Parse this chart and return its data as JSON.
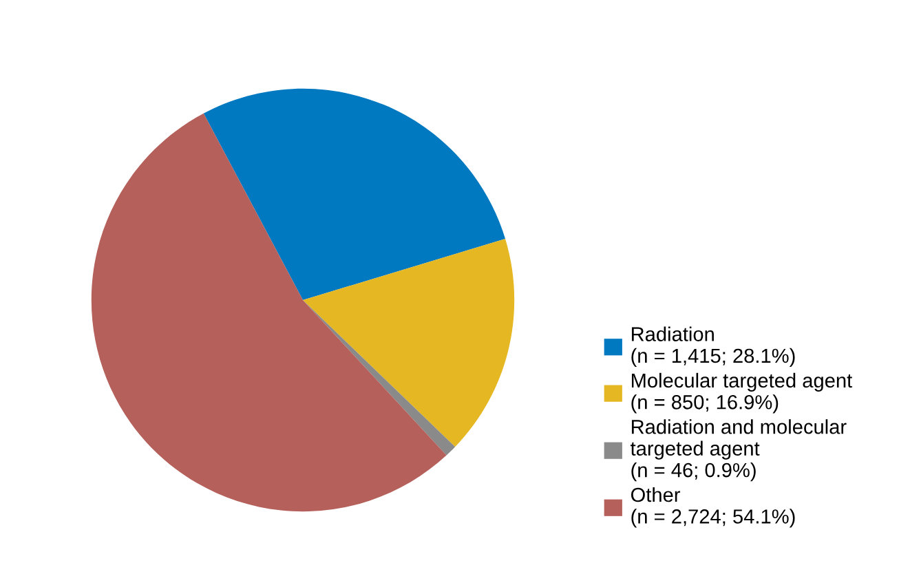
{
  "chart_data": {
    "type": "pie",
    "categories": [
      "Radiation\n(n = 1,415; 28.1%)",
      "Molecular targeted agent\n(n = 850; 16.9%)",
      "Radiation and molecular\ntargeted agent\n(n = 46; 0.9%)",
      "Other\n(n = 2,724; 54.1%)"
    ],
    "values": [
      1415,
      850,
      46,
      2724
    ],
    "colors": [
      "#0079c1",
      "#e5b823",
      "#8a8a8a",
      "#b5605a"
    ],
    "legend": "right"
  }
}
